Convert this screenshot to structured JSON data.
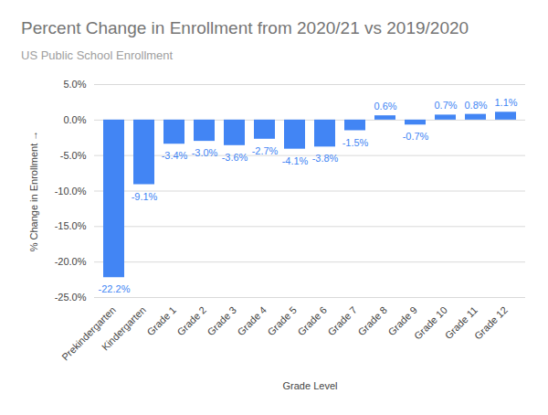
{
  "chart_data": {
    "type": "bar",
    "title": "Percent Change in Enrollment from 2020/21 vs 2019/2020",
    "subtitle": "US Public School Enrollment",
    "x_label": "Grade Level",
    "y_label": "% Change in Enrollment",
    "categories": [
      "Prekindergarten",
      "Kindergarten",
      "Grade 1",
      "Grade 2",
      "Grade 3",
      "Grade 4",
      "Grade 5",
      "Grade 6",
      "Grade 7",
      "Grade 8",
      "Grade 9",
      "Grade 10",
      "Grade 11",
      "Grade 12"
    ],
    "values": [
      -22.2,
      -9.1,
      -3.4,
      -3.0,
      -3.6,
      -2.7,
      -4.1,
      -3.8,
      -1.5,
      0.6,
      -0.7,
      0.7,
      0.8,
      1.1
    ],
    "value_labels": [
      "-22.2%",
      "-9.1%",
      "-3.4%",
      "-3.0%",
      "-3.6%",
      "-2.7%",
      "-4.1%",
      "-3.8%",
      "-1.5%",
      "0.6%",
      "-0.7%",
      "0.7%",
      "0.8%",
      "1.1%"
    ],
    "color": "#4285f4",
    "ylim": [
      -25,
      5
    ],
    "yticks": [
      {
        "value": -25,
        "label": "-25.0%"
      },
      {
        "value": -20,
        "label": "-20.0%"
      },
      {
        "value": -15,
        "label": "-15.0%"
      },
      {
        "value": -10,
        "label": "-10.0%"
      },
      {
        "value": -5,
        "label": "-5.0%"
      },
      {
        "value": 0,
        "label": "0.0%"
      },
      {
        "value": 5,
        "label": "5.0%"
      }
    ],
    "grid": true,
    "data_labels": true
  }
}
